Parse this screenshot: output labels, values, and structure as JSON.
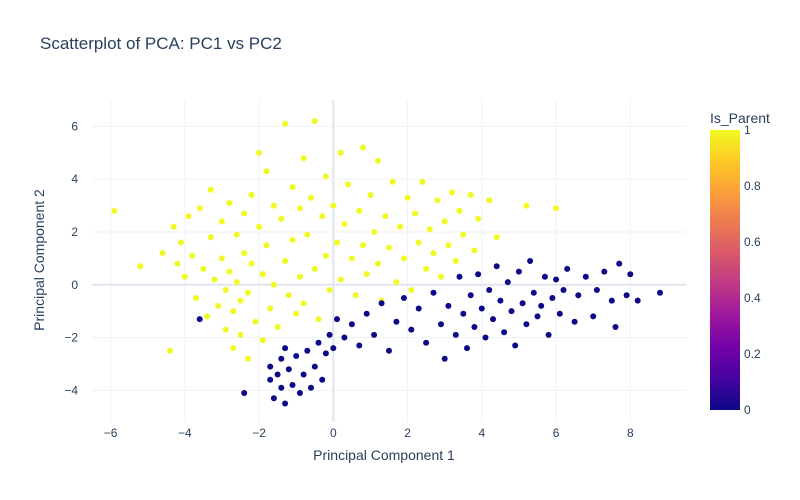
{
  "chart_data": {
    "type": "scatter",
    "title": "Scatterplot of PCA: PC1 vs PC2",
    "xlabel": "Principal Component 1",
    "ylabel": "Principal Component 2",
    "xlim": [
      -6.5,
      9.5
    ],
    "ylim": [
      -5.2,
      7.0
    ],
    "x_ticks": [
      -6,
      -4,
      -2,
      0,
      2,
      4,
      6,
      8
    ],
    "y_ticks": [
      -4,
      -2,
      0,
      2,
      4,
      6
    ],
    "grid": true,
    "colorbar": {
      "title": "Is_Parent",
      "range": [
        0,
        1
      ],
      "ticks": [
        0,
        0.2,
        0.4,
        0.6,
        0.8,
        1
      ],
      "colorscale": [
        "#0d0887",
        "#46039f",
        "#7201a8",
        "#9c179e",
        "#bd3786",
        "#d8576b",
        "#ed7953",
        "#fb9f3a",
        "#fdca26",
        "#f0f921"
      ]
    },
    "series": [
      {
        "group": 1,
        "color": "#f0f921",
        "points": [
          [
            -5.9,
            2.8
          ],
          [
            -5.2,
            0.7
          ],
          [
            -4.6,
            1.2
          ],
          [
            -4.4,
            -2.5
          ],
          [
            -4.3,
            2.2
          ],
          [
            -4.2,
            0.8
          ],
          [
            -4.1,
            1.6
          ],
          [
            -4.0,
            0.3
          ],
          [
            -3.9,
            2.6
          ],
          [
            -3.8,
            1.1
          ],
          [
            -3.7,
            -0.5
          ],
          [
            -3.6,
            2.9
          ],
          [
            -3.5,
            0.6
          ],
          [
            -3.4,
            -1.2
          ],
          [
            -3.3,
            3.6
          ],
          [
            -3.3,
            1.8
          ],
          [
            -3.2,
            0.2
          ],
          [
            -3.1,
            -0.8
          ],
          [
            -3.0,
            2.4
          ],
          [
            -3.0,
            1.0
          ],
          [
            -2.9,
            -0.2
          ],
          [
            -2.9,
            -1.7
          ],
          [
            -2.8,
            3.1
          ],
          [
            -2.8,
            0.5
          ],
          [
            -2.7,
            -1.0
          ],
          [
            -2.7,
            -2.4
          ],
          [
            -2.6,
            1.9
          ],
          [
            -2.6,
            0.1
          ],
          [
            -2.5,
            -0.6
          ],
          [
            -2.5,
            -1.9
          ],
          [
            -2.4,
            2.7
          ],
          [
            -2.4,
            1.2
          ],
          [
            -2.3,
            -0.3
          ],
          [
            -2.3,
            -2.8
          ],
          [
            -2.2,
            3.4
          ],
          [
            -2.2,
            0.8
          ],
          [
            -2.1,
            -1.4
          ],
          [
            -2.0,
            5.0
          ],
          [
            -2.0,
            2.2
          ],
          [
            -1.9,
            0.4
          ],
          [
            -1.9,
            -2.1
          ],
          [
            -1.8,
            4.3
          ],
          [
            -1.8,
            1.5
          ],
          [
            -1.7,
            -0.9
          ],
          [
            -1.6,
            3.0
          ],
          [
            -1.6,
            0.0
          ],
          [
            -1.5,
            -1.6
          ],
          [
            -1.4,
            2.5
          ],
          [
            -1.3,
            6.1
          ],
          [
            -1.3,
            0.9
          ],
          [
            -1.2,
            -0.4
          ],
          [
            -1.1,
            3.7
          ],
          [
            -1.1,
            1.7
          ],
          [
            -1.0,
            -1.1
          ],
          [
            -0.9,
            2.9
          ],
          [
            -0.9,
            0.3
          ],
          [
            -0.8,
            4.8
          ],
          [
            -0.8,
            -0.7
          ],
          [
            -0.7,
            1.9
          ],
          [
            -0.6,
            3.3
          ],
          [
            -0.5,
            6.2
          ],
          [
            -0.5,
            0.6
          ],
          [
            -0.4,
            -1.3
          ],
          [
            -0.3,
            2.6
          ],
          [
            -0.2,
            4.1
          ],
          [
            -0.2,
            1.1
          ],
          [
            -0.1,
            -0.2
          ],
          [
            0.0,
            3.0
          ],
          [
            0.1,
            1.6
          ],
          [
            0.2,
            5.0
          ],
          [
            0.2,
            0.2
          ],
          [
            0.3,
            2.3
          ],
          [
            0.4,
            3.8
          ],
          [
            0.5,
            1.0
          ],
          [
            0.6,
            -0.4
          ],
          [
            0.7,
            2.8
          ],
          [
            0.8,
            5.2
          ],
          [
            0.8,
            1.5
          ],
          [
            0.9,
            0.4
          ],
          [
            1.0,
            3.4
          ],
          [
            1.1,
            2.0
          ],
          [
            1.2,
            4.7
          ],
          [
            1.2,
            0.8
          ],
          [
            1.3,
            -0.6
          ],
          [
            1.4,
            2.6
          ],
          [
            1.5,
            1.4
          ],
          [
            1.6,
            3.9
          ],
          [
            1.7,
            0.1
          ],
          [
            1.8,
            2.2
          ],
          [
            1.9,
            1.0
          ],
          [
            2.0,
            3.3
          ],
          [
            2.1,
            -0.2
          ],
          [
            2.2,
            2.7
          ],
          [
            2.3,
            1.6
          ],
          [
            2.4,
            3.9
          ],
          [
            2.5,
            0.6
          ],
          [
            2.6,
            2.1
          ],
          [
            2.7,
            1.2
          ],
          [
            2.8,
            3.2
          ],
          [
            2.9,
            0.3
          ],
          [
            3.0,
            2.4
          ],
          [
            3.1,
            1.5
          ],
          [
            3.2,
            3.5
          ],
          [
            3.3,
            0.9
          ],
          [
            3.4,
            2.8
          ],
          [
            3.5,
            1.9
          ],
          [
            3.7,
            3.4
          ],
          [
            3.8,
            1.3
          ],
          [
            3.9,
            2.5
          ],
          [
            4.2,
            3.2
          ],
          [
            4.4,
            1.8
          ],
          [
            5.2,
            3.0
          ],
          [
            6.0,
            2.9
          ]
        ]
      },
      {
        "group": 0,
        "color": "#0d0887",
        "points": [
          [
            -3.6,
            -1.3
          ],
          [
            -2.4,
            -4.1
          ],
          [
            -1.7,
            -3.1
          ],
          [
            -1.7,
            -3.6
          ],
          [
            -1.6,
            -4.3
          ],
          [
            -1.5,
            -3.4
          ],
          [
            -1.4,
            -2.8
          ],
          [
            -1.4,
            -3.9
          ],
          [
            -1.3,
            -2.4
          ],
          [
            -1.3,
            -4.5
          ],
          [
            -1.2,
            -3.2
          ],
          [
            -1.1,
            -3.8
          ],
          [
            -1.0,
            -2.7
          ],
          [
            -0.9,
            -4.1
          ],
          [
            -0.8,
            -3.4
          ],
          [
            -0.7,
            -2.5
          ],
          [
            -0.6,
            -3.9
          ],
          [
            -0.5,
            -3.1
          ],
          [
            -0.4,
            -2.2
          ],
          [
            -0.3,
            -3.6
          ],
          [
            -0.2,
            -2.6
          ],
          [
            -0.1,
            -1.9
          ],
          [
            0.0,
            -2.4
          ],
          [
            0.1,
            -1.3
          ],
          [
            0.3,
            -2.0
          ],
          [
            0.5,
            -1.5
          ],
          [
            0.7,
            -2.3
          ],
          [
            0.9,
            -1.1
          ],
          [
            1.1,
            -1.9
          ],
          [
            1.3,
            -0.7
          ],
          [
            1.5,
            -2.5
          ],
          [
            1.7,
            -1.4
          ],
          [
            1.9,
            -0.5
          ],
          [
            2.1,
            -1.7
          ],
          [
            2.3,
            -0.9
          ],
          [
            2.5,
            -2.2
          ],
          [
            2.7,
            -0.3
          ],
          [
            2.9,
            -1.5
          ],
          [
            3.0,
            -2.8
          ],
          [
            3.1,
            -0.8
          ],
          [
            3.3,
            -1.9
          ],
          [
            3.4,
            0.3
          ],
          [
            3.5,
            -1.1
          ],
          [
            3.6,
            -2.4
          ],
          [
            3.7,
            -0.4
          ],
          [
            3.8,
            -1.6
          ],
          [
            3.9,
            0.4
          ],
          [
            4.0,
            -0.9
          ],
          [
            4.1,
            -2.0
          ],
          [
            4.2,
            -0.2
          ],
          [
            4.3,
            -1.3
          ],
          [
            4.4,
            0.7
          ],
          [
            4.5,
            -0.6
          ],
          [
            4.6,
            -1.8
          ],
          [
            4.7,
            0.1
          ],
          [
            4.8,
            -1.0
          ],
          [
            4.9,
            -2.3
          ],
          [
            5.0,
            0.5
          ],
          [
            5.1,
            -0.7
          ],
          [
            5.2,
            -1.5
          ],
          [
            5.3,
            0.9
          ],
          [
            5.4,
            -0.3
          ],
          [
            5.5,
            -1.2
          ],
          [
            5.6,
            -0.8
          ],
          [
            5.7,
            0.3
          ],
          [
            5.8,
            -1.9
          ],
          [
            5.9,
            -0.5
          ],
          [
            6.0,
            0.2
          ],
          [
            6.1,
            -1.1
          ],
          [
            6.2,
            -0.2
          ],
          [
            6.3,
            0.6
          ],
          [
            6.5,
            -1.4
          ],
          [
            6.6,
            -0.4
          ],
          [
            6.8,
            0.3
          ],
          [
            7.0,
            -1.2
          ],
          [
            7.1,
            -0.2
          ],
          [
            7.3,
            0.5
          ],
          [
            7.5,
            -0.6
          ],
          [
            7.6,
            -1.6
          ],
          [
            7.7,
            0.8
          ],
          [
            7.9,
            -0.4
          ],
          [
            8.0,
            0.4
          ],
          [
            8.2,
            -0.6
          ],
          [
            8.8,
            -0.3
          ]
        ]
      }
    ]
  }
}
